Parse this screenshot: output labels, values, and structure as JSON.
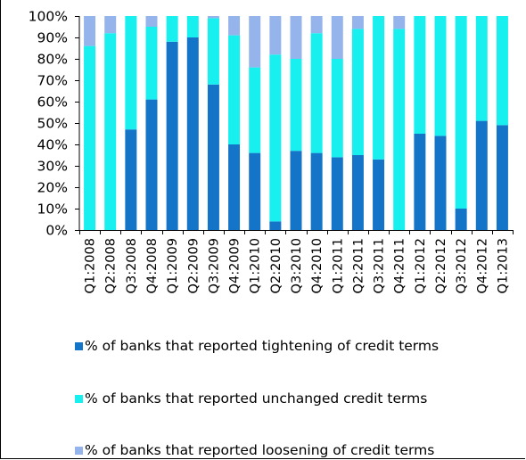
{
  "chart_data": {
    "type": "bar",
    "stacked": true,
    "title": "",
    "xlabel": "",
    "ylabel": "",
    "ylim": [
      0,
      100
    ],
    "y_ticks": [
      "0%",
      "10%",
      "20%",
      "30%",
      "40%",
      "50%",
      "60%",
      "70%",
      "80%",
      "90%",
      "100%"
    ],
    "grid": false,
    "legend_position": "bottom",
    "categories": [
      "Q1:2008",
      "Q2:2008",
      "Q3:2008",
      "Q4:2008",
      "Q1:2009",
      "Q2:2009",
      "Q3:2009",
      "Q4:2009",
      "Q1:2010",
      "Q2:2010",
      "Q3:2010",
      "Q4:2010",
      "Q1:2011",
      "Q2:2011",
      "Q3:2011",
      "Q4:2011",
      "Q1:2012",
      "Q2:2012",
      "Q3:2012",
      "Q4:2012",
      "Q1:2013"
    ],
    "series": [
      {
        "name": "% of banks that reported tightening of credit terms",
        "color": "#1474C8",
        "values": [
          0,
          0,
          47,
          61,
          88,
          90,
          68,
          40,
          36,
          4,
          37,
          36,
          34,
          35,
          33,
          0,
          45,
          44,
          10,
          51,
          49
        ]
      },
      {
        "name": "% of banks that reported unchanged credit terms",
        "color": "#18F0F0",
        "values": [
          86,
          92,
          53,
          34,
          12,
          10,
          31,
          51,
          40,
          78,
          43,
          56,
          46,
          59,
          67,
          94,
          55,
          56,
          90,
          49,
          51
        ]
      },
      {
        "name": "% of banks that reported loosening of credit terms",
        "color": "#96B4EC",
        "values": [
          14,
          8,
          0,
          5,
          0,
          0,
          1,
          9,
          24,
          18,
          20,
          8,
          20,
          6,
          0,
          6,
          0,
          0,
          0,
          0,
          0
        ]
      }
    ]
  }
}
